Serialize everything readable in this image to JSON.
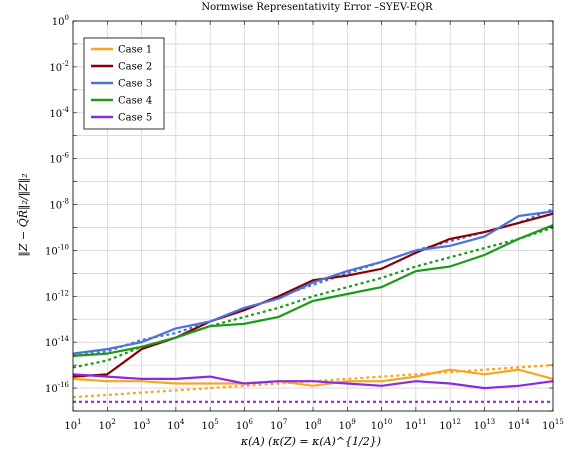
{
  "chart_data": {
    "type": "line",
    "title": "Normwise Representativity Error –SYEV-EQR",
    "xlabel": "κ(A)  (κ(Z) = κ(A)^{1/2})",
    "ylabel": "‖Z − Q̃R̃‖₂/‖Z‖₂",
    "x_scale": "log",
    "y_scale": "log",
    "xlim_exp": [
      1,
      15
    ],
    "ylim_exp": [
      -17,
      0
    ],
    "x_ticks_exp": [
      1,
      2,
      3,
      4,
      5,
      6,
      7,
      8,
      9,
      10,
      11,
      12,
      13,
      14,
      15
    ],
    "y_ticks_exp": [
      0,
      -2,
      -4,
      -6,
      -8,
      -10,
      -12,
      -14,
      -16
    ],
    "grid": true,
    "legend_position": "top-left",
    "x_exp": [
      1,
      2,
      3,
      4,
      5,
      6,
      7,
      8,
      9,
      10,
      11,
      12,
      13,
      14,
      15
    ],
    "series": [
      {
        "name": "Case 1",
        "color": "#f5a623",
        "y_exp": [
          -15.6,
          -15.7,
          -15.7,
          -15.8,
          -15.8,
          -15.8,
          -15.7,
          -15.9,
          -15.7,
          -15.7,
          -15.5,
          -15.2,
          -15.4,
          -15.2,
          -15.6
        ],
        "ref_y_exp": [
          -16.4,
          -16.3,
          -16.2,
          -16.1,
          -16.0,
          -15.9,
          -15.8,
          -15.7,
          -15.6,
          -15.5,
          -15.4,
          -15.3,
          -15.2,
          -15.1,
          -15.0
        ]
      },
      {
        "name": "Case 2",
        "color": "#8b0000",
        "y_exp": [
          -15.5,
          -15.4,
          -14.3,
          -13.8,
          -13.1,
          -12.6,
          -12.0,
          -11.3,
          -11.1,
          -10.8,
          -10.1,
          -9.5,
          -9.2,
          -8.8,
          -8.4
        ],
        "ref_y_exp": null
      },
      {
        "name": "Case 3",
        "color": "#4a74d8",
        "y_exp": [
          -14.5,
          -14.3,
          -14.0,
          -13.4,
          -13.1,
          -12.5,
          -12.1,
          -11.4,
          -10.9,
          -10.5,
          -10.0,
          -9.8,
          -9.4,
          -8.5,
          -8.3
        ],
        "ref_y_exp": [
          -14.6,
          -14.4,
          -13.9,
          -13.6,
          -13.1,
          -12.6,
          -12.0,
          -11.5,
          -11.0,
          -10.5,
          -10.0,
          -9.6,
          -9.2,
          -8.8,
          -8.2
        ]
      },
      {
        "name": "Case 4",
        "color": "#1a9a1a",
        "y_exp": [
          -14.6,
          -14.5,
          -14.2,
          -13.8,
          -13.3,
          -13.2,
          -12.9,
          -12.2,
          -11.9,
          -11.6,
          -10.9,
          -10.7,
          -10.2,
          -9.5,
          -8.9
        ],
        "ref_y_exp": [
          -15.1,
          -14.8,
          -14.2,
          -13.8,
          -13.3,
          -12.9,
          -12.5,
          -12.0,
          -11.6,
          -11.2,
          -10.7,
          -10.3,
          -9.9,
          -9.5,
          -9.0
        ]
      },
      {
        "name": "Case 5",
        "color": "#8a2be2",
        "y_exp": [
          -15.4,
          -15.5,
          -15.6,
          -15.6,
          -15.5,
          -15.8,
          -15.7,
          -15.7,
          -15.8,
          -15.9,
          -15.7,
          -15.8,
          -16.0,
          -15.9,
          -15.7
        ],
        "ref_y_exp": [
          -16.6,
          -16.6,
          -16.6,
          -16.6,
          -16.6,
          -16.6,
          -16.6,
          -16.6,
          -16.6,
          -16.6,
          -16.6,
          -16.6,
          -16.6,
          -16.6,
          -16.6
        ]
      }
    ]
  }
}
